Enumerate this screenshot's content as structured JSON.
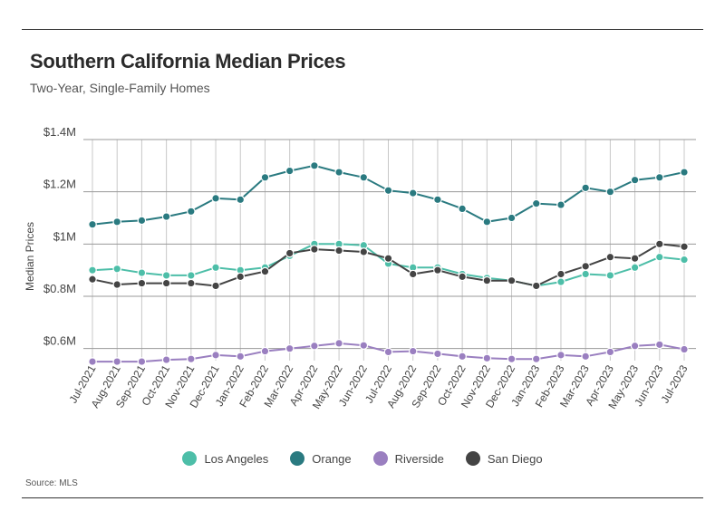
{
  "title": "Southern California Median Prices",
  "subtitle": "Two-Year, Single-Family Homes",
  "source": "Source: MLS",
  "chart_data": {
    "type": "line",
    "title": "Southern California Median Prices",
    "subtitle": "Two-Year, Single-Family Homes",
    "xlabel": "",
    "ylabel": "Median Prices",
    "ylim": [
      500000,
      1400000
    ],
    "y_ticks": [
      {
        "value": 600000,
        "label": "$0.6M"
      },
      {
        "value": 800000,
        "label": "$0.8M"
      },
      {
        "value": 1000000,
        "label": "$1M"
      },
      {
        "value": 1200000,
        "label": "$1.2M"
      },
      {
        "value": 1400000,
        "label": "$1.4M"
      }
    ],
    "grid": true,
    "legend_position": "bottom",
    "categories": [
      "Jul-2021",
      "Aug-2021",
      "Sep-2021",
      "Oct-2021",
      "Nov-2021",
      "Dec-2021",
      "Jan-2022",
      "Feb-2022",
      "Mar-2022",
      "Apr-2022",
      "May-2022",
      "Jun-2022",
      "Jul-2022",
      "Aug-2022",
      "Sep-2022",
      "Oct-2022",
      "Nov-2022",
      "Dec-2022",
      "Jan-2023",
      "Feb-2023",
      "Mar-2023",
      "Apr-2023",
      "May-2023",
      "Jun-2023",
      "Jul-2023"
    ],
    "series": [
      {
        "name": "Los Angeles",
        "color": "#4dbea8",
        "values": [
          900000,
          905000,
          890000,
          880000,
          880000,
          910000,
          900000,
          910000,
          955000,
          1000000,
          1000000,
          995000,
          925000,
          910000,
          910000,
          885000,
          870000,
          860000,
          840000,
          855000,
          885000,
          880000,
          910000,
          950000,
          940000
        ]
      },
      {
        "name": "Orange",
        "color": "#2a7a80",
        "values": [
          1075000,
          1085000,
          1090000,
          1105000,
          1125000,
          1175000,
          1170000,
          1255000,
          1280000,
          1300000,
          1275000,
          1255000,
          1205000,
          1195000,
          1170000,
          1135000,
          1085000,
          1100000,
          1155000,
          1150000,
          1215000,
          1200000,
          1245000,
          1255000,
          1275000
        ]
      },
      {
        "name": "Riverside",
        "color": "#9a7fc0",
        "values": [
          550000,
          550000,
          550000,
          557000,
          560000,
          575000,
          570000,
          590000,
          600000,
          610000,
          620000,
          612000,
          587000,
          590000,
          580000,
          570000,
          563000,
          560000,
          560000,
          575000,
          570000,
          587000,
          610000,
          615000,
          597000
        ]
      },
      {
        "name": "San Diego",
        "color": "#444444",
        "values": [
          865000,
          845000,
          850000,
          850000,
          850000,
          840000,
          875000,
          895000,
          965000,
          980000,
          975000,
          970000,
          945000,
          885000,
          900000,
          875000,
          860000,
          860000,
          840000,
          885000,
          915000,
          950000,
          945000,
          1000000,
          990000
        ]
      }
    ]
  }
}
